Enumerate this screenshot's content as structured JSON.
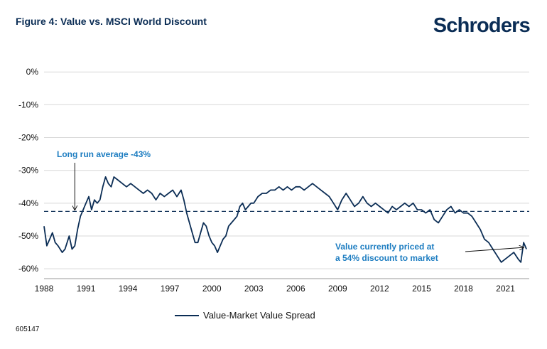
{
  "header": {
    "title": "Figure 4: Value vs. MSCI World Discount",
    "logo": "Schroders"
  },
  "footnote": "605147",
  "colors": {
    "series": "#0b2d55",
    "annotation": "#1d7dc1",
    "grid": "#d9d9d9",
    "text": "#111111"
  },
  "chart_data": {
    "type": "line",
    "title": "Value vs. MSCI World Discount",
    "xlabel": "",
    "ylabel": "",
    "xlim": [
      1988,
      2022.7
    ],
    "ylim": [
      -63,
      2
    ],
    "x_ticks": [
      1988,
      1991,
      1994,
      1997,
      2000,
      2003,
      2006,
      2009,
      2012,
      2015,
      2018,
      2021
    ],
    "x_tick_labels": [
      "1988",
      "1991",
      "1994",
      "1997",
      "2000",
      "2003",
      "2006",
      "2009",
      "2012",
      "2015",
      "2018",
      "2021"
    ],
    "y_ticks": [
      0,
      -10,
      -20,
      -30,
      -40,
      -50,
      -60
    ],
    "y_tick_labels": [
      "0%",
      "-10%",
      "-20%",
      "-30%",
      "-40%",
      "-50%",
      "-60%"
    ],
    "grid": true,
    "reference_line": {
      "label": "Long run average -43%",
      "value": -42.5,
      "style": "dashed"
    },
    "annotations": [
      {
        "text_line1": "Value currently priced at",
        "text_line2": "a 54% discount to market",
        "x": 2022.5,
        "y": -53.5
      },
      {
        "text": "Long run average -43%",
        "x": 1990.2,
        "y": -42.5
      }
    ],
    "legend": {
      "position": "bottom-center",
      "entries": [
        "Value-Market Value Spread"
      ]
    },
    "series": [
      {
        "name": "Value-Market Value Spread",
        "x": [
          1988.0,
          1988.2,
          1988.4,
          1988.6,
          1988.8,
          1989.0,
          1989.3,
          1989.5,
          1989.8,
          1990.0,
          1990.2,
          1990.4,
          1990.6,
          1990.8,
          1991.0,
          1991.2,
          1991.4,
          1991.6,
          1991.8,
          1992.0,
          1992.2,
          1992.4,
          1992.6,
          1992.8,
          1993.0,
          1993.3,
          1993.6,
          1993.9,
          1994.2,
          1994.5,
          1994.8,
          1995.1,
          1995.4,
          1995.7,
          1996.0,
          1996.3,
          1996.6,
          1996.9,
          1997.2,
          1997.5,
          1997.8,
          1998.0,
          1998.2,
          1998.4,
          1998.6,
          1998.8,
          1999.0,
          1999.2,
          1999.4,
          1999.6,
          1999.8,
          2000.0,
          2000.2,
          2000.4,
          2000.6,
          2000.8,
          2001.0,
          2001.2,
          2001.4,
          2001.6,
          2001.8,
          2002.0,
          2002.2,
          2002.4,
          2002.6,
          2002.8,
          2003.0,
          2003.3,
          2003.6,
          2003.9,
          2004.2,
          2004.5,
          2004.8,
          2005.1,
          2005.4,
          2005.7,
          2006.0,
          2006.3,
          2006.6,
          2006.9,
          2007.2,
          2007.5,
          2007.8,
          2008.1,
          2008.4,
          2008.7,
          2009.0,
          2009.3,
          2009.6,
          2009.9,
          2010.2,
          2010.5,
          2010.8,
          2011.1,
          2011.4,
          2011.7,
          2012.0,
          2012.3,
          2012.6,
          2012.9,
          2013.2,
          2013.5,
          2013.8,
          2014.1,
          2014.4,
          2014.7,
          2015.0,
          2015.3,
          2015.6,
          2015.9,
          2016.2,
          2016.5,
          2016.8,
          2017.1,
          2017.4,
          2017.7,
          2018.0,
          2018.3,
          2018.6,
          2018.9,
          2019.2,
          2019.5,
          2019.8,
          2020.1,
          2020.4,
          2020.7,
          2021.0,
          2021.3,
          2021.6,
          2021.9,
          2022.1,
          2022.3,
          2022.5
        ],
        "values": [
          -47,
          -53,
          -51,
          -49,
          -52,
          -53,
          -55,
          -54,
          -50,
          -54,
          -53,
          -48,
          -44,
          -42,
          -40,
          -38,
          -42,
          -39,
          -40,
          -39,
          -35,
          -32,
          -34,
          -35,
          -32,
          -33,
          -34,
          -35,
          -34,
          -35,
          -36,
          -37,
          -36,
          -37,
          -39,
          -37,
          -38,
          -37,
          -36,
          -38,
          -36,
          -39,
          -43,
          -46,
          -49,
          -52,
          -52,
          -49,
          -46,
          -47,
          -50,
          -52,
          -53,
          -55,
          -53,
          -51,
          -50,
          -47,
          -46,
          -45,
          -44,
          -41,
          -40,
          -42,
          -41,
          -40,
          -40,
          -38,
          -37,
          -37,
          -36,
          -36,
          -35,
          -36,
          -35,
          -36,
          -35,
          -35,
          -36,
          -35,
          -34,
          -35,
          -36,
          -37,
          -38,
          -40,
          -42,
          -39,
          -37,
          -39,
          -41,
          -40,
          -38,
          -40,
          -41,
          -40,
          -41,
          -42,
          -43,
          -41,
          -42,
          -41,
          -40,
          -41,
          -40,
          -42,
          -42,
          -43,
          -42,
          -45,
          -46,
          -44,
          -42,
          -41,
          -43,
          -42,
          -43,
          -43,
          -44,
          -46,
          -48,
          -51,
          -52,
          -54,
          -56,
          -58,
          -57,
          -56,
          -55,
          -57,
          -58,
          -52,
          -54
        ]
      }
    ]
  }
}
